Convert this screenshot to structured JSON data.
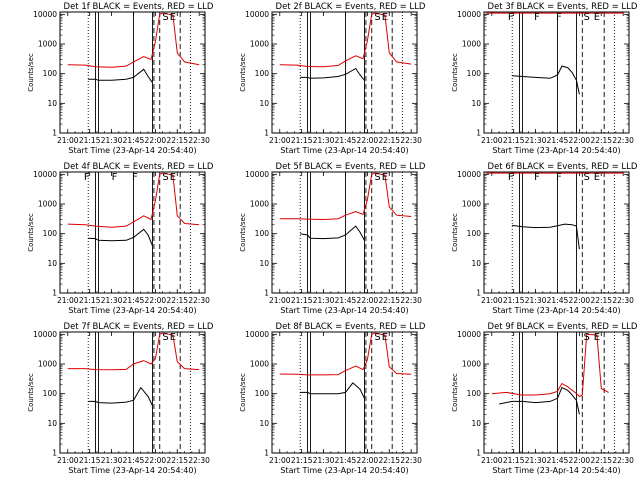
{
  "figure": {
    "x_tick_labels": [
      "21:00",
      "21:15",
      "21:30",
      "21:45",
      "22:00",
      "22:15",
      "22:30"
    ],
    "y_tick_labels": [
      "1",
      "10",
      "100",
      "1000",
      "10000"
    ],
    "xlabel": "Start Time (23-Apr-14 20:54:40)",
    "ylabel": "Counts/sec",
    "colors": {
      "events": "#000000",
      "lld": "#dd0000",
      "axes": "#000000"
    }
  },
  "chart_data": [
    {
      "type": "line",
      "title": "Det 1f BLACK = Events, RED = LLD",
      "xlabel": "Start Time (23-Apr-14 20:54:40)",
      "ylabel": "Counts/sec",
      "xlim": [
        "20:54:40",
        "22:34:00"
      ],
      "ylim": [
        1,
        12000
      ],
      "yscale": "log",
      "dotted_lines": [
        "21:14",
        "22:24"
      ],
      "solid_lines": [
        "21:19",
        "21:21",
        "21:45",
        "21:58"
      ],
      "dashed_lines": [
        "21:59",
        "22:03",
        "22:17"
      ],
      "markers": [
        {
          "time": "22:07",
          "label": "S"
        },
        {
          "time": "22:12",
          "label": "E"
        }
      ],
      "series": [
        {
          "name": "Events",
          "color": "#000000",
          "x": [
            "21:14",
            "21:19",
            "21:21",
            "21:30",
            "21:40",
            "21:45",
            "21:52",
            "21:55",
            "21:58"
          ],
          "y": [
            65,
            65,
            60,
            60,
            65,
            75,
            140,
            80,
            50
          ]
        },
        {
          "name": "LLD",
          "color": "#dd0000",
          "x": [
            "21:00",
            "21:12",
            "21:19",
            "21:30",
            "21:40",
            "21:45",
            "21:52",
            "21:57",
            "22:00",
            "22:03",
            "22:05",
            "22:12",
            "22:15",
            "22:20",
            "22:30"
          ],
          "y": [
            200,
            195,
            170,
            165,
            180,
            250,
            380,
            300,
            1200,
            10000,
            11000,
            9500,
            500,
            250,
            200
          ]
        }
      ]
    },
    {
      "type": "line",
      "title": "Det 2f BLACK = Events, RED = LLD",
      "xlabel": "Start Time (23-Apr-14 20:54:40)",
      "ylabel": "Counts/sec",
      "xlim": [
        "20:54:40",
        "22:34:00"
      ],
      "ylim": [
        1,
        12000
      ],
      "yscale": "log",
      "dotted_lines": [
        "21:14",
        "22:24"
      ],
      "solid_lines": [
        "21:19",
        "21:21",
        "21:45",
        "21:58"
      ],
      "dashed_lines": [
        "21:59",
        "22:03",
        "22:17"
      ],
      "markers": [
        {
          "time": "22:07",
          "label": "S"
        },
        {
          "time": "22:12",
          "label": "E"
        }
      ],
      "series": [
        {
          "name": "Events",
          "color": "#000000",
          "x": [
            "21:14",
            "21:19",
            "21:21",
            "21:30",
            "21:40",
            "21:45",
            "21:52",
            "21:55",
            "21:58"
          ],
          "y": [
            75,
            75,
            70,
            72,
            80,
            95,
            150,
            90,
            60
          ]
        },
        {
          "name": "LLD",
          "color": "#dd0000",
          "x": [
            "21:00",
            "21:12",
            "21:19",
            "21:30",
            "21:40",
            "21:45",
            "21:52",
            "21:57",
            "22:00",
            "22:03",
            "22:05",
            "22:12",
            "22:15",
            "22:20",
            "22:30"
          ],
          "y": [
            200,
            195,
            175,
            170,
            190,
            270,
            400,
            320,
            1300,
            10000,
            11000,
            9500,
            500,
            250,
            210
          ]
        }
      ]
    },
    {
      "type": "line",
      "title": "Det 3f BLACK = Events, RED = LLD",
      "xlabel": "Start Time (23-Apr-14 20:54:40)",
      "ylabel": "Counts/sec",
      "xlim": [
        "20:54:40",
        "22:34:00"
      ],
      "ylim": [
        1,
        12000
      ],
      "yscale": "log",
      "dotted_lines": [
        "21:14",
        "22:24"
      ],
      "solid_lines": [
        "21:19",
        "21:21",
        "21:45",
        "21:58"
      ],
      "dashed_lines": [
        "22:02",
        "22:17"
      ],
      "markers": [
        {
          "time": "21:13",
          "label": "F"
        },
        {
          "time": "21:31",
          "label": "F"
        },
        {
          "time": "21:46",
          "label": "F"
        },
        {
          "time": "22:05",
          "label": "S"
        },
        {
          "time": "22:12",
          "label": "E"
        }
      ],
      "series": [
        {
          "name": "Events",
          "color": "#000000",
          "x": [
            "21:14",
            "21:21",
            "21:30",
            "21:40",
            "21:45",
            "21:48",
            "21:52",
            "21:55",
            "21:58",
            "22:00"
          ],
          "y": [
            85,
            80,
            75,
            70,
            90,
            180,
            160,
            110,
            60,
            20
          ]
        },
        {
          "name": "LLD",
          "color": "#dd0000",
          "x": [
            "20:56",
            "22:00",
            "22:30"
          ],
          "y": [
            11000,
            11000,
            11000
          ]
        }
      ]
    },
    {
      "type": "line",
      "title": "Det 4f BLACK = Events, RED = LLD",
      "xlabel": "Start Time (23-Apr-14 20:54:40)",
      "ylabel": "Counts/sec",
      "xlim": [
        "20:54:40",
        "22:34:00"
      ],
      "ylim": [
        1,
        12000
      ],
      "yscale": "log",
      "dotted_lines": [
        "21:14",
        "22:24"
      ],
      "solid_lines": [
        "21:19",
        "21:21",
        "21:45",
        "21:58"
      ],
      "dashed_lines": [
        "21:59",
        "22:03",
        "22:17"
      ],
      "markers": [
        {
          "time": "21:13",
          "label": "F"
        },
        {
          "time": "21:32",
          "label": "F"
        },
        {
          "time": "21:46",
          "label": "F"
        },
        {
          "time": "22:07",
          "label": "S"
        },
        {
          "time": "22:12",
          "label": "E"
        }
      ],
      "series": [
        {
          "name": "Events",
          "color": "#000000",
          "x": [
            "21:14",
            "21:19",
            "21:21",
            "21:30",
            "21:40",
            "21:45",
            "21:52",
            "21:55",
            "21:58"
          ],
          "y": [
            70,
            68,
            60,
            58,
            60,
            75,
            140,
            90,
            40
          ]
        },
        {
          "name": "LLD",
          "color": "#dd0000",
          "x": [
            "21:00",
            "21:12",
            "21:19",
            "21:30",
            "21:40",
            "21:45",
            "21:52",
            "21:57",
            "22:00",
            "22:03",
            "22:05",
            "22:12",
            "22:15",
            "22:20",
            "22:30"
          ],
          "y": [
            210,
            200,
            180,
            165,
            180,
            250,
            400,
            300,
            1300,
            10000,
            11000,
            9500,
            400,
            220,
            200
          ]
        }
      ]
    },
    {
      "type": "line",
      "title": "Det 5f BLACK = Events, RED = LLD",
      "xlabel": "Start Time (23-Apr-14 20:54:40)",
      "ylabel": "Counts/sec",
      "xlim": [
        "20:54:40",
        "22:34:00"
      ],
      "ylim": [
        1,
        12000
      ],
      "yscale": "log",
      "dotted_lines": [
        "21:14",
        "22:24"
      ],
      "solid_lines": [
        "21:19",
        "21:21",
        "21:45",
        "21:58"
      ],
      "dashed_lines": [
        "21:59",
        "22:03",
        "22:17"
      ],
      "markers": [
        {
          "time": "22:07",
          "label": "S"
        },
        {
          "time": "22:12",
          "label": "E"
        }
      ],
      "series": [
        {
          "name": "Events",
          "color": "#000000",
          "x": [
            "21:14",
            "21:19",
            "21:21",
            "21:30",
            "21:40",
            "21:45",
            "21:52",
            "21:55",
            "21:58"
          ],
          "y": [
            100,
            90,
            70,
            68,
            72,
            90,
            180,
            110,
            60
          ]
        },
        {
          "name": "LLD",
          "color": "#dd0000",
          "x": [
            "21:00",
            "21:12",
            "21:19",
            "21:30",
            "21:40",
            "21:45",
            "21:52",
            "21:57",
            "22:00",
            "22:03",
            "22:05",
            "22:12",
            "22:15",
            "22:20",
            "22:30"
          ],
          "y": [
            320,
            320,
            310,
            300,
            320,
            420,
            550,
            450,
            1400,
            10000,
            11000,
            9500,
            800,
            420,
            380
          ]
        }
      ]
    },
    {
      "type": "line",
      "title": "Det 6f BLACK = Events, RED = LLD",
      "xlabel": "Start Time (23-Apr-14 20:54:40)",
      "ylabel": "Counts/sec",
      "xlim": [
        "20:54:40",
        "22:34:00"
      ],
      "ylim": [
        1,
        12000
      ],
      "yscale": "log",
      "dotted_lines": [
        "21:14",
        "22:24"
      ],
      "solid_lines": [
        "21:19",
        "21:21",
        "21:45",
        "21:58"
      ],
      "dashed_lines": [
        "22:02",
        "22:17"
      ],
      "markers": [
        {
          "time": "21:13",
          "label": "F"
        },
        {
          "time": "21:31",
          "label": "F"
        },
        {
          "time": "21:46",
          "label": "F"
        },
        {
          "time": "22:05",
          "label": "S"
        },
        {
          "time": "22:12",
          "label": "E"
        }
      ],
      "series": [
        {
          "name": "Events",
          "color": "#000000",
          "x": [
            "21:14",
            "21:21",
            "21:30",
            "21:40",
            "21:45",
            "21:50",
            "21:55",
            "21:58",
            "22:00"
          ],
          "y": [
            190,
            170,
            160,
            165,
            185,
            210,
            200,
            180,
            30
          ]
        },
        {
          "name": "LLD",
          "color": "#dd0000",
          "x": [
            "20:56",
            "22:00",
            "22:30"
          ],
          "y": [
            11000,
            11000,
            11000
          ]
        }
      ]
    },
    {
      "type": "line",
      "title": "Det 7f BLACK = Events, RED = LLD",
      "xlabel": "Start Time (23-Apr-14 20:54:40)",
      "ylabel": "Counts/sec",
      "xlim": [
        "20:54:40",
        "22:34:00"
      ],
      "ylim": [
        1,
        12000
      ],
      "yscale": "log",
      "dotted_lines": [
        "21:14",
        "22:24"
      ],
      "solid_lines": [
        "21:19",
        "21:21",
        "21:45",
        "21:58"
      ],
      "dashed_lines": [
        "21:59",
        "22:03",
        "22:17"
      ],
      "markers": [
        {
          "time": "22:07",
          "label": "S"
        },
        {
          "time": "22:12",
          "label": "E"
        }
      ],
      "series": [
        {
          "name": "Events",
          "color": "#000000",
          "x": [
            "21:14",
            "21:19",
            "21:21",
            "21:30",
            "21:40",
            "21:45",
            "21:50",
            "21:55",
            "21:58"
          ],
          "y": [
            55,
            55,
            50,
            48,
            52,
            60,
            160,
            80,
            40
          ]
        },
        {
          "name": "LLD",
          "color": "#dd0000",
          "x": [
            "21:00",
            "21:12",
            "21:19",
            "21:30",
            "21:40",
            "21:45",
            "21:52",
            "21:57",
            "22:00",
            "22:03",
            "22:05",
            "22:12",
            "22:15",
            "22:20",
            "22:30"
          ],
          "y": [
            700,
            700,
            650,
            640,
            660,
            1000,
            1300,
            1000,
            1500,
            10000,
            11000,
            9500,
            1200,
            700,
            650
          ]
        }
      ]
    },
    {
      "type": "line",
      "title": "Det 8f BLACK = Events, RED = LLD",
      "xlabel": "Start Time (23-Apr-14 20:54:40)",
      "ylabel": "Counts/sec",
      "xlim": [
        "20:54:40",
        "22:34:00"
      ],
      "ylim": [
        1,
        12000
      ],
      "yscale": "log",
      "dotted_lines": [
        "21:14",
        "22:24"
      ],
      "solid_lines": [
        "21:19",
        "21:21",
        "21:45",
        "21:58"
      ],
      "dashed_lines": [
        "21:59",
        "22:03",
        "22:17"
      ],
      "markers": [
        {
          "time": "22:07",
          "label": "S"
        },
        {
          "time": "22:12",
          "label": "E"
        }
      ],
      "series": [
        {
          "name": "Events",
          "color": "#000000",
          "x": [
            "21:14",
            "21:19",
            "21:21",
            "21:30",
            "21:40",
            "21:45",
            "21:50",
            "21:55",
            "21:58"
          ],
          "y": [
            110,
            110,
            100,
            100,
            100,
            110,
            230,
            140,
            70
          ]
        },
        {
          "name": "LLD",
          "color": "#dd0000",
          "x": [
            "21:00",
            "21:12",
            "21:19",
            "21:30",
            "21:40",
            "21:45",
            "21:52",
            "21:57",
            "22:00",
            "22:03",
            "22:05",
            "22:12",
            "22:15",
            "22:20",
            "22:30"
          ],
          "y": [
            460,
            450,
            430,
            430,
            440,
            600,
            850,
            650,
            1400,
            10000,
            11000,
            9500,
            800,
            480,
            450
          ]
        }
      ]
    },
    {
      "type": "line",
      "title": "Det 9f BLACK = Events, RED = LLD",
      "xlabel": "Start Time (23-Apr-14 20:54:40)",
      "ylabel": "Counts/sec",
      "xlim": [
        "20:54:40",
        "22:34:00"
      ],
      "ylim": [
        1,
        12000
      ],
      "yscale": "log",
      "dotted_lines": [
        "21:14",
        "22:24"
      ],
      "solid_lines": [
        "21:19",
        "21:21",
        "21:45",
        "21:58"
      ],
      "dashed_lines": [
        "22:02",
        "22:17"
      ],
      "markers": [
        {
          "time": "22:05",
          "label": "S"
        },
        {
          "time": "22:12",
          "label": "E"
        }
      ],
      "series": [
        {
          "name": "Events",
          "color": "#000000",
          "x": [
            "21:05",
            "21:14",
            "21:21",
            "21:30",
            "21:40",
            "21:45",
            "21:48",
            "21:52",
            "21:55",
            "21:58",
            "22:00"
          ],
          "y": [
            45,
            55,
            55,
            50,
            55,
            70,
            160,
            130,
            90,
            60,
            20
          ]
        },
        {
          "name": "LLD",
          "color": "#dd0000",
          "x": [
            "21:00",
            "21:10",
            "21:20",
            "21:30",
            "21:40",
            "21:45",
            "21:48",
            "21:52",
            "21:57",
            "22:00",
            "22:02",
            "22:05",
            "22:12",
            "22:15",
            "22:20"
          ],
          "y": [
            100,
            110,
            90,
            90,
            100,
            120,
            220,
            170,
            110,
            80,
            90,
            10000,
            9500,
            150,
            110
          ]
        }
      ]
    }
  ]
}
